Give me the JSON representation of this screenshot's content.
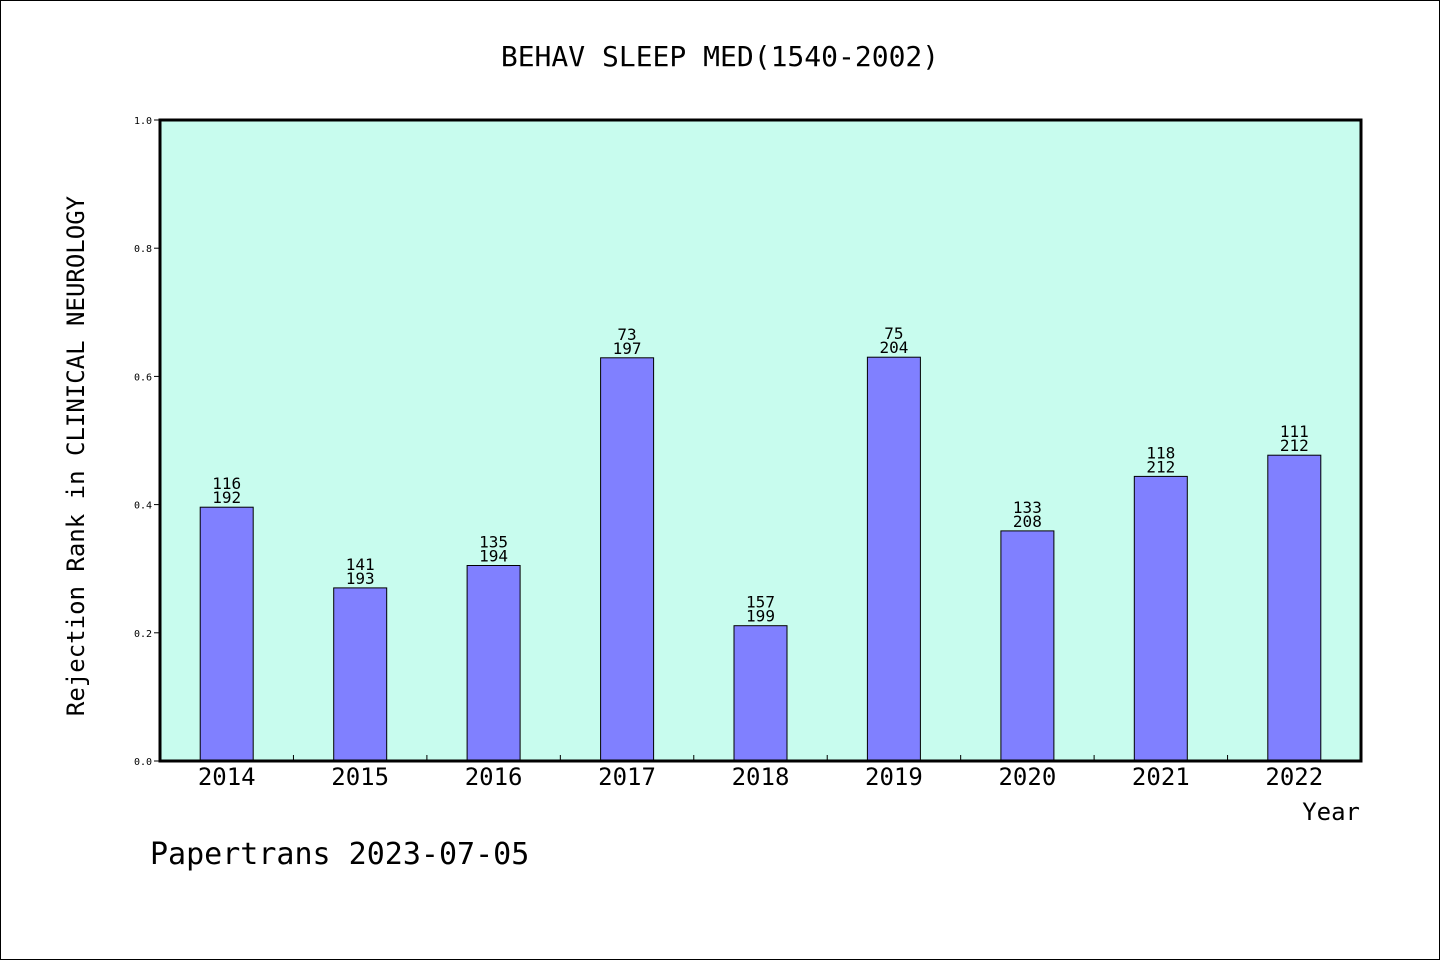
{
  "chart_data": {
    "type": "bar",
    "title": "BEHAV SLEEP MED(1540-2002)",
    "xlabel": "Year",
    "ylabel": "Rejection Rank in CLINICAL NEUROLOGY",
    "footer": "Papertrans 2023-07-05",
    "categories": [
      "2014",
      "2015",
      "2016",
      "2017",
      "2018",
      "2019",
      "2020",
      "2021",
      "2022"
    ],
    "values": [
      0.396,
      0.27,
      0.305,
      0.629,
      0.211,
      0.63,
      0.359,
      0.444,
      0.477
    ],
    "labels_top": [
      "116",
      "141",
      "135",
      "73",
      "157",
      "75",
      "133",
      "118",
      "111"
    ],
    "labels_bottom": [
      "192",
      "193",
      "194",
      "197",
      "199",
      "204",
      "208",
      "212",
      "212"
    ],
    "ylim": [
      0,
      1.0
    ],
    "yticks": [
      "0.0",
      "0.2",
      "0.4",
      "0.6",
      "0.8",
      "1.0"
    ],
    "grid": false,
    "colors": {
      "plot_background": "#c8fcee",
      "bar": "#8080ff",
      "bar_edge": "#000000",
      "axis": "#000000"
    }
  }
}
